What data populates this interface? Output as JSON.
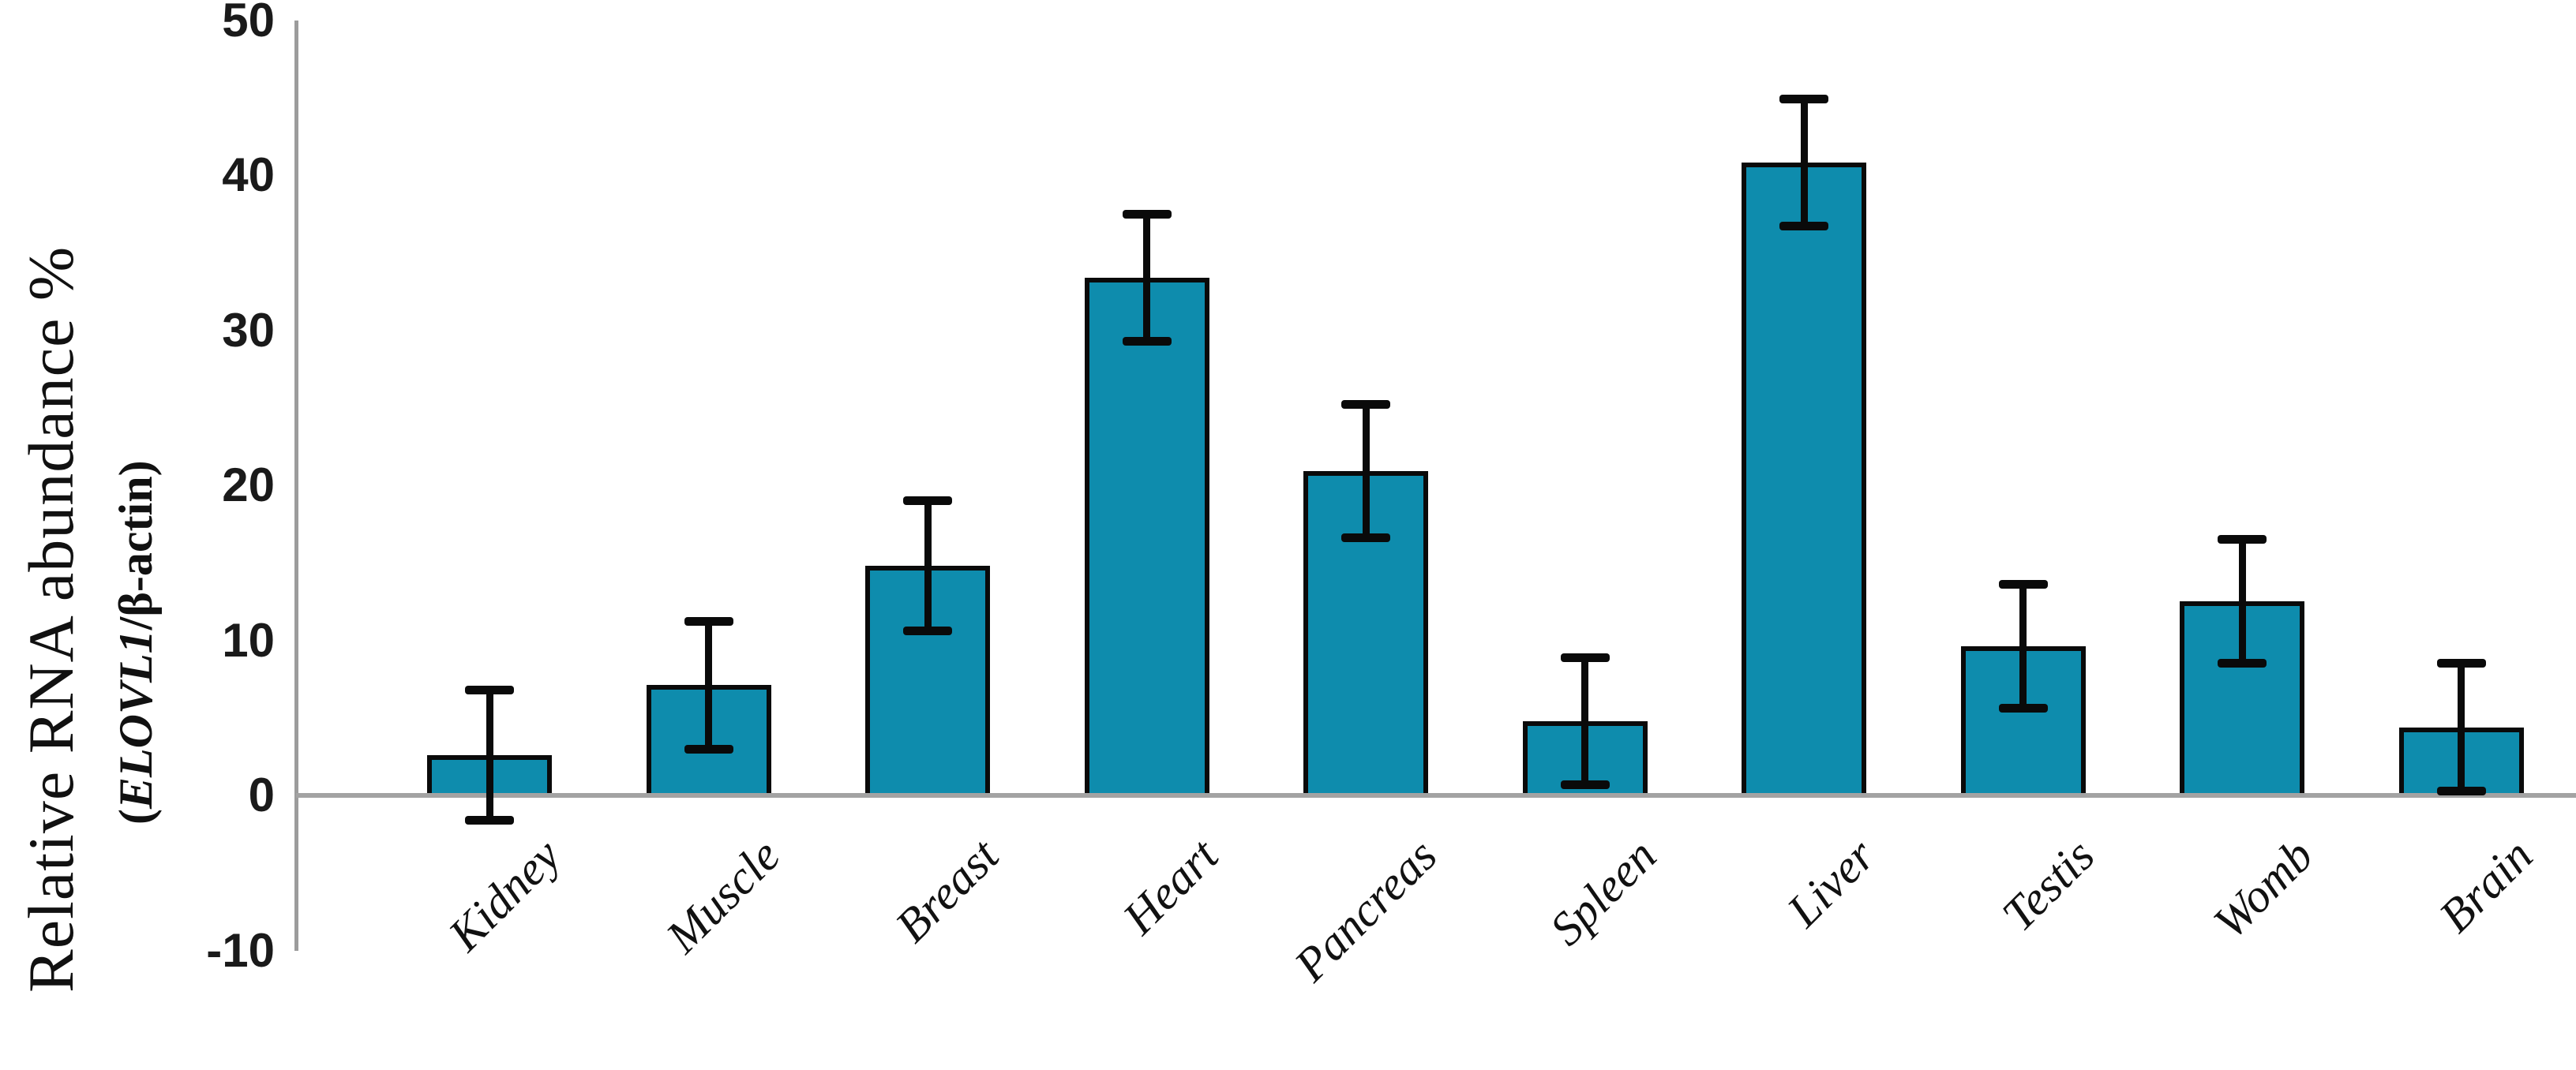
{
  "chart_data": {
    "type": "bar",
    "title": "",
    "ylabel": "Relative RNA abundance %",
    "ylabel_sub_prefix": "(",
    "ylabel_sub_gene": "ELOVL1",
    "ylabel_sub_suffix": "/β-actin)",
    "categories": [
      "Kidney",
      "Muscle",
      "Breast",
      "Heart",
      "Pancreas",
      "Spleen",
      "Liver",
      "Testis",
      "Womb",
      "Brain"
    ],
    "values": [
      2.6,
      7.1,
      14.8,
      33.4,
      20.9,
      4.8,
      40.8,
      9.6,
      12.5,
      4.4
    ],
    "errors": [
      4.2,
      4.1,
      4.2,
      4.1,
      4.3,
      4.1,
      4.1,
      4.0,
      4.0,
      4.1
    ],
    "yticks": [
      50,
      40,
      30,
      20,
      10,
      0,
      -10
    ],
    "ylim": [
      -10,
      50
    ],
    "grid": false,
    "legend": "none",
    "bar_color": "#0e8cad",
    "bar_border_color": "#000000",
    "error_bar_color": "#000000",
    "axis_color": "#9c9c9c"
  }
}
